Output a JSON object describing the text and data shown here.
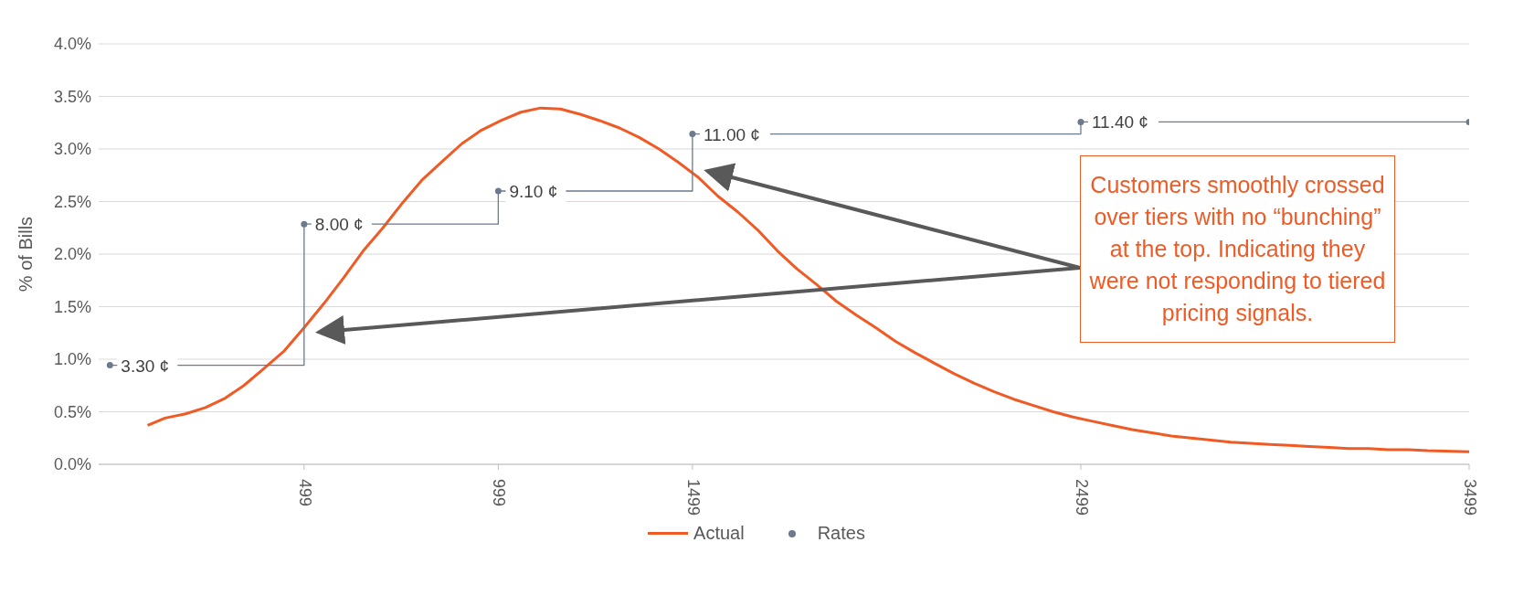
{
  "chart_data": {
    "type": "line",
    "ylabel": "% of Bills",
    "xlim": [
      -30,
      3499
    ],
    "xticks": [
      499,
      999,
      1499,
      2499,
      3499
    ],
    "ylim": [
      0,
      4
    ],
    "yticks": [
      {
        "value": 0,
        "label": "0.0%"
      },
      {
        "value": 0.5,
        "label": "0.5%"
      },
      {
        "value": 1,
        "label": "1.0%"
      },
      {
        "value": 1.5,
        "label": "1.5%"
      },
      {
        "value": 2,
        "label": "2.0%"
      },
      {
        "value": 2.5,
        "label": "2.5%"
      },
      {
        "value": 3,
        "label": "3.0%"
      },
      {
        "value": 3.5,
        "label": "3.5%"
      },
      {
        "value": 4,
        "label": "4.0%"
      }
    ],
    "y2lim": [
      0,
      14
    ],
    "grid": "y",
    "legend": "bottom",
    "series": [
      {
        "name": "Actual",
        "color": "#f05a24",
        "marker": "none",
        "x": [
          96,
          141,
          194,
          245,
          296,
          344,
          395,
          448,
          499,
          550,
          600,
          651,
          702,
          753,
          804,
          854,
          905,
          956,
          1006,
          1057,
          1108,
          1159,
          1210,
          1260,
          1311,
          1362,
          1413,
          1464,
          1514,
          1565,
          1616,
          1667,
          1718,
          1768,
          1819,
          1870,
          1921,
          1971,
          2022,
          2073,
          2123,
          2174,
          2225,
          2276,
          2326,
          2377,
          2428,
          2479,
          2529,
          2580,
          2631,
          2682,
          2732,
          2783,
          2834,
          2885,
          2936,
          2986,
          3037,
          3088,
          3139,
          3189,
          3240,
          3291,
          3342,
          3392,
          3499
        ],
        "values": [
          0.37,
          0.44,
          0.48,
          0.54,
          0.63,
          0.75,
          0.91,
          1.08,
          1.3,
          1.53,
          1.77,
          2.03,
          2.25,
          2.49,
          2.71,
          2.88,
          3.05,
          3.18,
          3.27,
          3.35,
          3.39,
          3.38,
          3.33,
          3.27,
          3.2,
          3.11,
          3.0,
          2.87,
          2.73,
          2.55,
          2.4,
          2.23,
          2.03,
          1.86,
          1.71,
          1.55,
          1.42,
          1.3,
          1.17,
          1.06,
          0.96,
          0.86,
          0.77,
          0.69,
          0.62,
          0.56,
          0.5,
          0.45,
          0.41,
          0.37,
          0.33,
          0.3,
          0.27,
          0.25,
          0.23,
          0.21,
          0.2,
          0.19,
          0.18,
          0.17,
          0.16,
          0.15,
          0.15,
          0.14,
          0.14,
          0.13,
          0.12
        ]
      },
      {
        "name": "Rates",
        "type": "step",
        "color": "#6b7a8c",
        "marker": "circle",
        "x": [
          -1,
          499,
          999,
          1499,
          2499,
          3499
        ],
        "axis": "y2",
        "values": [
          3.3,
          8.0,
          9.1,
          11.0,
          11.4,
          11.4
        ],
        "value_labels": [
          "3.30 ¢",
          "8.00 ¢",
          "9.10 ¢",
          "11.00 ¢",
          "11.40 ¢",
          null
        ]
      }
    ],
    "annotations": [
      "Customers smoothly crossed over tiers with no “bunching” at the top. Indicating they were not responding to tiered pricing signals."
    ]
  }
}
